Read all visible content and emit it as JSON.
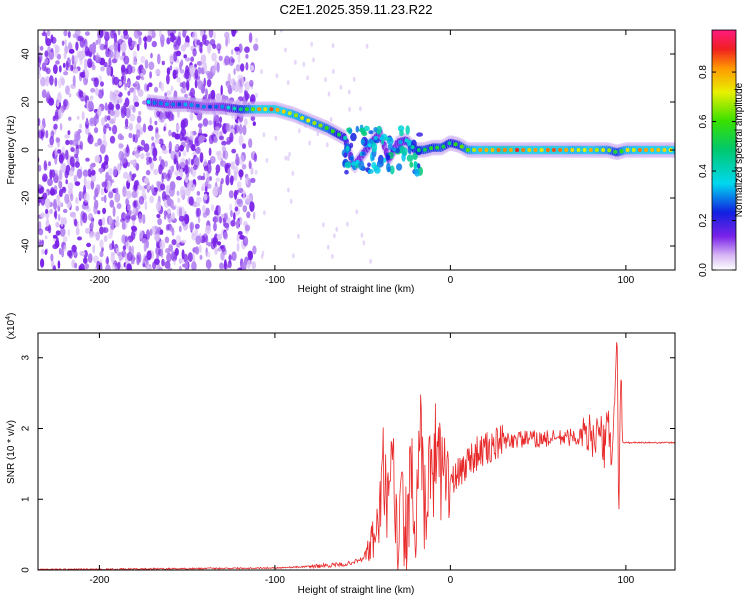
{
  "title": "C2E1.2025.359.11.23.R22",
  "top_panel": {
    "xlabel": "Height of straight line (km)",
    "ylabel": "Frequency (Hz)",
    "x_ticks": [
      "-200",
      "-100",
      "0",
      "100"
    ],
    "y_ticks": [
      "40",
      "20",
      "0",
      "-20",
      "-40"
    ],
    "colorbar_label": "Normalized spectral amplitude",
    "colorbar_ticks": [
      "0.0",
      "0.2",
      "0.4",
      "0.6",
      "0.8"
    ]
  },
  "bottom_panel": {
    "xlabel": "Height of straight line (km)",
    "ylabel": "SNR (10 * v/v)",
    "multiplier": "(x10",
    "multiplier_exp": "4",
    "multiplier_close": ")",
    "x_ticks": [
      "-200",
      "-100",
      "0",
      "100"
    ],
    "y_ticks": [
      "0",
      "1",
      "2",
      "3"
    ]
  },
  "colors": {
    "snr_line": "#e8292a",
    "scatter": "#7a22e8"
  },
  "chart_data": [
    {
      "type": "heatmap",
      "title": "C2E1.2025.359.11.23.R22",
      "xlabel": "Height of straight line (km)",
      "ylabel": "Frequency (Hz)",
      "xlim": [
        -235,
        128
      ],
      "ylim": [
        -50,
        50
      ],
      "colorbar": {
        "label": "Normalized spectral amplitude",
        "range": [
          0,
          0.97
        ],
        "colormap": "rainbow"
      },
      "ridge": {
        "x": [
          -172,
          -160,
          -150,
          -140,
          -130,
          -120,
          -110,
          -100,
          -90,
          -80,
          -70,
          -60,
          -55,
          -50,
          -45,
          -40,
          -35,
          -30,
          -25,
          -20,
          -15,
          -10,
          -5,
          0,
          5,
          10,
          20,
          30,
          40,
          50,
          60,
          70,
          80,
          90,
          95,
          100,
          110,
          128
        ],
        "y": [
          20,
          19,
          19,
          18,
          18,
          17,
          17,
          17,
          15,
          12,
          9,
          5,
          -7,
          -2,
          3,
          7,
          -4,
          3,
          4,
          0,
          0,
          1,
          1,
          3,
          2,
          0,
          0,
          0,
          0,
          0,
          0,
          0,
          0,
          0,
          -1,
          0,
          0,
          0
        ],
        "amplitude": [
          0.35,
          0.3,
          0.3,
          0.25,
          0.3,
          0.5,
          0.8,
          0.85,
          0.75,
          0.7,
          0.65,
          0.45,
          0.3,
          0.35,
          0.4,
          0.35,
          0.3,
          0.35,
          0.4,
          0.55,
          0.6,
          0.55,
          0.6,
          0.5,
          0.55,
          0.7,
          0.85,
          0.9,
          0.85,
          0.8,
          0.85,
          0.75,
          0.8,
          0.7,
          0.55,
          0.75,
          0.8,
          0.8
        ]
      }
    },
    {
      "type": "line",
      "xlabel": "Height of straight line (km)",
      "ylabel": "SNR (10 * v/v)",
      "xlim": [
        -235,
        128
      ],
      "ylim": [
        0,
        3.35
      ],
      "y_multiplier": 10000,
      "series": [
        {
          "x": [
            -235,
            -200,
            -150,
            -100,
            -80,
            -60,
            -50,
            -45,
            -40,
            -38,
            -35,
            -33,
            -30,
            -28,
            -25,
            -22,
            -20,
            -17,
            -15,
            -12,
            -10,
            -8,
            -5,
            -3,
            0,
            5,
            10,
            15,
            20,
            25,
            30,
            40,
            50,
            60,
            70,
            80,
            85,
            88,
            90,
            92,
            94,
            95,
            96,
            97,
            98,
            100,
            110,
            128
          ],
          "values": [
            0.01,
            0.01,
            0.02,
            0.03,
            0.05,
            0.08,
            0.15,
            0.35,
            0.8,
            1.5,
            0.6,
            1.6,
            0.3,
            0.9,
            0.5,
            1.4,
            0.3,
            1.9,
            0.7,
            1.6,
            1.0,
            2.0,
            1.3,
            1.6,
            1.2,
            1.35,
            1.55,
            1.65,
            1.7,
            1.75,
            1.82,
            1.85,
            1.85,
            1.86,
            1.88,
            1.9,
            1.95,
            1.7,
            2.2,
            1.6,
            2.5,
            3.3,
            0.8,
            2.9,
            1.8,
            1.8,
            1.8,
            1.8
          ],
          "color": "#e8292a"
        }
      ]
    }
  ]
}
